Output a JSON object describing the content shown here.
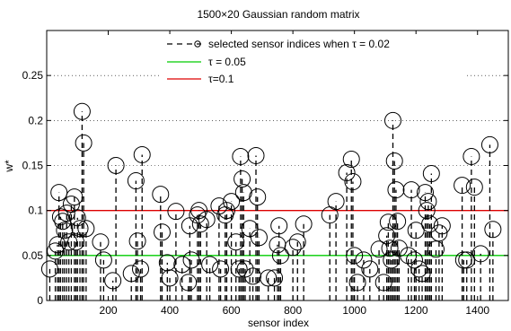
{
  "chart_data": {
    "type": "scatter",
    "title": "1500×20 Gaussian random matrix",
    "xlabel": "sensor index",
    "ylabel": "w*",
    "xlim": [
      0,
      1500
    ],
    "ylim": [
      0,
      0.3
    ],
    "xticks": [
      200,
      400,
      600,
      800,
      1000,
      1200,
      1400
    ],
    "xtick_labels": [
      "200",
      "400",
      "600",
      "800",
      "1000",
      "1200",
      "1400"
    ],
    "yticks": [
      0,
      0.05,
      0.1,
      0.15,
      0.2,
      0.25
    ],
    "ytick_labels": [
      "0",
      "0.05",
      "0.1",
      "0.15",
      "0.2",
      "0.25"
    ],
    "grid": "dotted horizontal",
    "legend_position": "top",
    "legend": [
      {
        "label": "selected sensor indices when τ = 0.02",
        "color": "#000000",
        "style": "dashed-circle"
      },
      {
        "label": "τ = 0.05",
        "color": "#00cc00",
        "style": "line"
      },
      {
        "label": "τ=0.1",
        "color": "#dd0000",
        "style": "line"
      }
    ],
    "hlines": [
      {
        "name": "τ = 0.05",
        "y": 0.05,
        "color": "#00cc00"
      },
      {
        "name": "τ=0.1",
        "y": 0.1,
        "color": "#dd0000"
      }
    ],
    "series": [
      {
        "name": "selected sensor indices when τ = 0.02",
        "points": [
          {
            "x": 10,
            "y": 0.035
          },
          {
            "x": 28,
            "y": 0.055
          },
          {
            "x": 35,
            "y": 0.062
          },
          {
            "x": 40,
            "y": 0.12
          },
          {
            "x": 45,
            "y": 0.093
          },
          {
            "x": 52,
            "y": 0.088
          },
          {
            "x": 58,
            "y": 0.078
          },
          {
            "x": 65,
            "y": 0.097
          },
          {
            "x": 72,
            "y": 0.065
          },
          {
            "x": 80,
            "y": 0.107
          },
          {
            "x": 90,
            "y": 0.115
          },
          {
            "x": 95,
            "y": 0.065
          },
          {
            "x": 100,
            "y": 0.092
          },
          {
            "x": 108,
            "y": 0.08
          },
          {
            "x": 115,
            "y": 0.21
          },
          {
            "x": 120,
            "y": 0.175
          },
          {
            "x": 128,
            "y": 0.08
          },
          {
            "x": 175,
            "y": 0.065
          },
          {
            "x": 185,
            "y": 0.045
          },
          {
            "x": 215,
            "y": 0.022
          },
          {
            "x": 225,
            "y": 0.15
          },
          {
            "x": 275,
            "y": 0.03
          },
          {
            "x": 290,
            "y": 0.133
          },
          {
            "x": 295,
            "y": 0.066
          },
          {
            "x": 305,
            "y": 0.035
          },
          {
            "x": 310,
            "y": 0.162
          },
          {
            "x": 370,
            "y": 0.118
          },
          {
            "x": 375,
            "y": 0.076
          },
          {
            "x": 392,
            "y": 0.042
          },
          {
            "x": 400,
            "y": 0.025
          },
          {
            "x": 420,
            "y": 0.099
          },
          {
            "x": 440,
            "y": 0.04
          },
          {
            "x": 460,
            "y": 0.02
          },
          {
            "x": 465,
            "y": 0.083
          },
          {
            "x": 470,
            "y": 0.045
          },
          {
            "x": 490,
            "y": 0.095
          },
          {
            "x": 495,
            "y": 0.1
          },
          {
            "x": 500,
            "y": 0.085
          },
          {
            "x": 520,
            "y": 0.09
          },
          {
            "x": 530,
            "y": 0.04
          },
          {
            "x": 560,
            "y": 0.105
          },
          {
            "x": 565,
            "y": 0.035
          },
          {
            "x": 580,
            "y": 0.095
          },
          {
            "x": 585,
            "y": 0.1
          },
          {
            "x": 600,
            "y": 0.11
          },
          {
            "x": 615,
            "y": 0.065
          },
          {
            "x": 625,
            "y": 0.035
          },
          {
            "x": 630,
            "y": 0.16
          },
          {
            "x": 635,
            "y": 0.135
          },
          {
            "x": 640,
            "y": 0.12
          },
          {
            "x": 645,
            "y": 0.035
          },
          {
            "x": 660,
            "y": 0.08
          },
          {
            "x": 670,
            "y": 0.027
          },
          {
            "x": 680,
            "y": 0.161
          },
          {
            "x": 685,
            "y": 0.115
          },
          {
            "x": 690,
            "y": 0.07
          },
          {
            "x": 720,
            "y": 0.025
          },
          {
            "x": 740,
            "y": 0.025
          },
          {
            "x": 750,
            "y": 0.062
          },
          {
            "x": 755,
            "y": 0.083
          },
          {
            "x": 760,
            "y": 0.05
          },
          {
            "x": 800,
            "y": 0.059
          },
          {
            "x": 815,
            "y": 0.065
          },
          {
            "x": 835,
            "y": 0.085
          },
          {
            "x": 920,
            "y": 0.095
          },
          {
            "x": 940,
            "y": 0.11
          },
          {
            "x": 975,
            "y": 0.142
          },
          {
            "x": 990,
            "y": 0.157
          },
          {
            "x": 995,
            "y": 0.132
          },
          {
            "x": 1000,
            "y": 0.05
          },
          {
            "x": 1010,
            "y": 0.02
          },
          {
            "x": 1030,
            "y": 0.045
          },
          {
            "x": 1050,
            "y": 0.035
          },
          {
            "x": 1080,
            "y": 0.057
          },
          {
            "x": 1095,
            "y": 0.02
          },
          {
            "x": 1105,
            "y": 0.072
          },
          {
            "x": 1110,
            "y": 0.087
          },
          {
            "x": 1115,
            "y": 0.058
          },
          {
            "x": 1120,
            "y": 0.045
          },
          {
            "x": 1125,
            "y": 0.2
          },
          {
            "x": 1130,
            "y": 0.155
          },
          {
            "x": 1135,
            "y": 0.123
          },
          {
            "x": 1140,
            "y": 0.088
          },
          {
            "x": 1145,
            "y": 0.058
          },
          {
            "x": 1175,
            "y": 0.05
          },
          {
            "x": 1185,
            "y": 0.123
          },
          {
            "x": 1195,
            "y": 0.045
          },
          {
            "x": 1200,
            "y": 0.078
          },
          {
            "x": 1210,
            "y": 0.035
          },
          {
            "x": 1220,
            "y": 0.03
          },
          {
            "x": 1230,
            "y": 0.12
          },
          {
            "x": 1235,
            "y": 0.1
          },
          {
            "x": 1240,
            "y": 0.11
          },
          {
            "x": 1245,
            "y": 0.085
          },
          {
            "x": 1250,
            "y": 0.141
          },
          {
            "x": 1265,
            "y": 0.057
          },
          {
            "x": 1275,
            "y": 0.075
          },
          {
            "x": 1285,
            "y": 0.083
          },
          {
            "x": 1350,
            "y": 0.128
          },
          {
            "x": 1355,
            "y": 0.045
          },
          {
            "x": 1365,
            "y": 0.045
          },
          {
            "x": 1380,
            "y": 0.16
          },
          {
            "x": 1390,
            "y": 0.126
          },
          {
            "x": 1410,
            "y": 0.052
          },
          {
            "x": 1440,
            "y": 0.173
          },
          {
            "x": 1450,
            "y": 0.079
          }
        ]
      }
    ]
  }
}
